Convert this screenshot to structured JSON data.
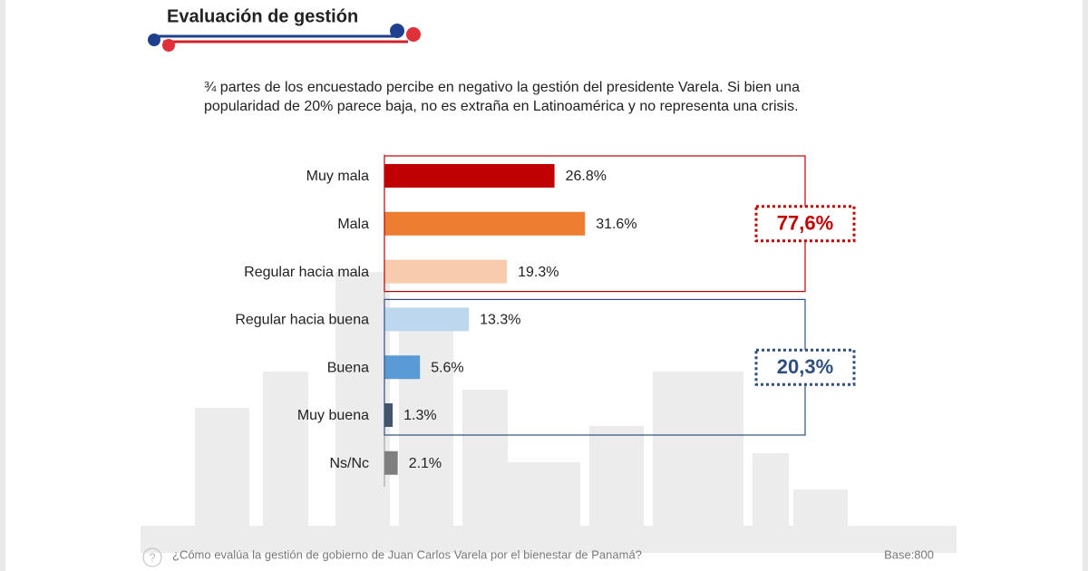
{
  "chart_data": {
    "type": "bar",
    "orientation": "horizontal",
    "title": "Evaluación de gestión",
    "subtitle": "¾ partes de los encuestado percibe en negativo la gestión del presidente Varela. Si bien una popularidad de 20% parece baja, no es extraña en Latinoamérica y no representa una crisis.",
    "categories": [
      "Muy mala",
      "Mala",
      "Regular hacia mala",
      "Regular hacia buena",
      "Buena",
      "Muy buena",
      "Ns/Nc"
    ],
    "values": [
      26.8,
      31.6,
      19.3,
      13.3,
      5.6,
      1.3,
      2.1
    ],
    "value_labels": [
      "26.8%",
      "31.6%",
      "19.3%",
      "13.3%",
      "5.6%",
      "1.3%",
      "2.1%"
    ],
    "colors": [
      "#c00000",
      "#ed7d31",
      "#f8cbad",
      "#bdd7ee",
      "#5b9bd5",
      "#44546a",
      "#7f7f7f"
    ],
    "groups": [
      {
        "label": "77,6%",
        "members": [
          "Muy mala",
          "Mala",
          "Regular hacia mala"
        ],
        "color": "#c00000"
      },
      {
        "label": "20,3%",
        "members": [
          "Regular hacia buena",
          "Buena",
          "Muy buena"
        ],
        "color": "#2f4f7f"
      }
    ],
    "footnote": "¿Cómo evalúa la gestión de gobierno de Juan Carlos Varela por el bienestar de Panamá?",
    "base": "Base:800"
  }
}
